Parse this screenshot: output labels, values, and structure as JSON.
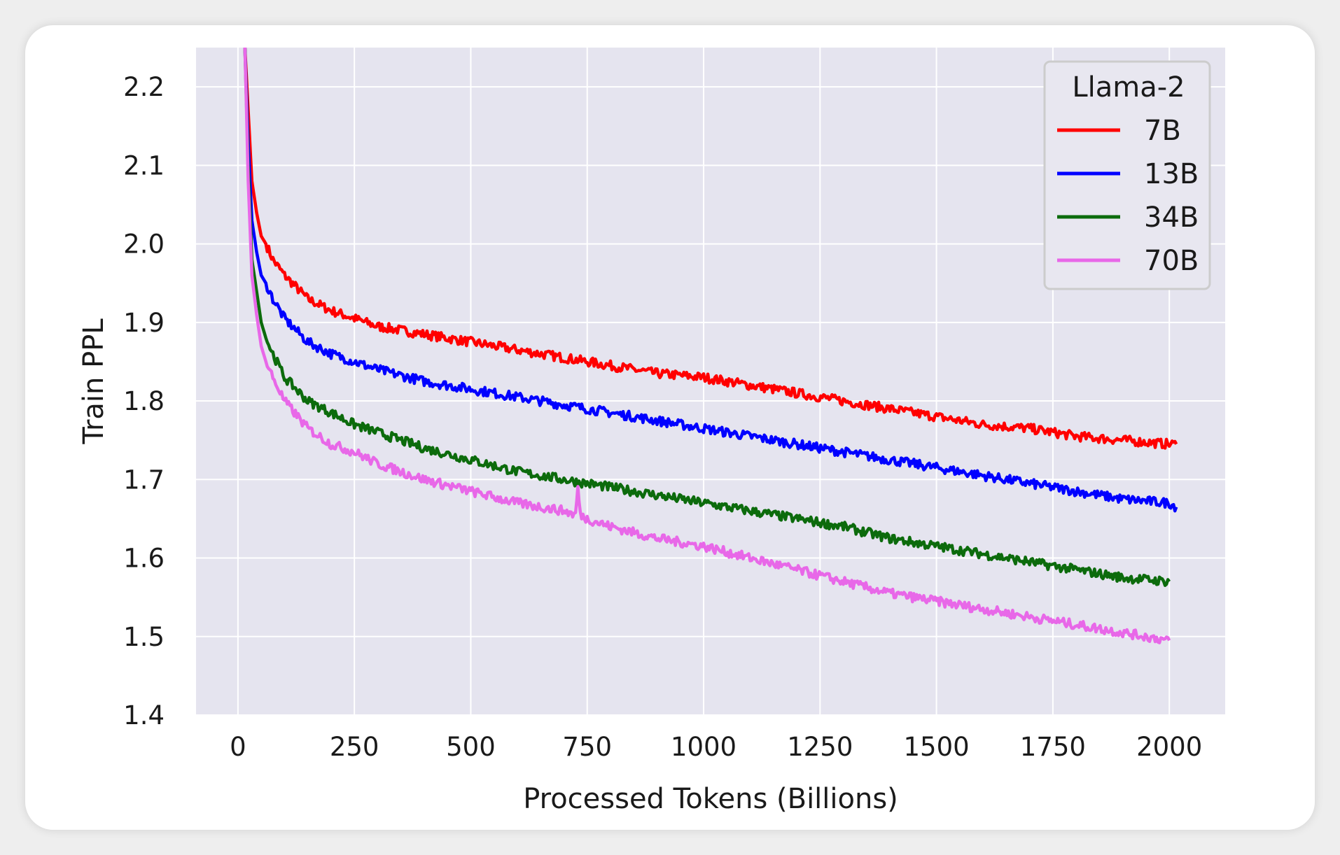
{
  "chart_data": {
    "type": "line",
    "title": "",
    "xlabel": "Processed Tokens (Billions)",
    "ylabel": "Train PPL",
    "xlim": [
      -90,
      2120
    ],
    "ylim": [
      1.4,
      2.25
    ],
    "xticks": [
      0,
      250,
      500,
      750,
      1000,
      1250,
      1500,
      1750,
      2000
    ],
    "xtick_labels": [
      "0",
      "250",
      "500",
      "750",
      "1000",
      "1250",
      "1500",
      "1750",
      "2000"
    ],
    "yticks": [
      1.4,
      1.5,
      1.6,
      1.7,
      1.8,
      1.9,
      2.0,
      2.1,
      2.2
    ],
    "ytick_labels": [
      "1.4",
      "1.5",
      "1.6",
      "1.7",
      "1.8",
      "1.9",
      "2.0",
      "2.1",
      "2.2"
    ],
    "grid": true,
    "background": "#e5e4ef",
    "legend": {
      "title": "Llama-2",
      "position": "top-right"
    },
    "series": [
      {
        "name": "7B",
        "color": "#ff0000",
        "x": [
          15,
          22,
          30,
          40,
          50,
          60,
          75,
          100,
          150,
          200,
          250,
          300,
          400,
          500,
          600,
          700,
          750,
          800,
          900,
          1000,
          1100,
          1200,
          1300,
          1400,
          1500,
          1600,
          1700,
          1800,
          1900,
          2000,
          2015
        ],
        "y": [
          2.25,
          2.17,
          2.08,
          2.04,
          2.01,
          2.0,
          1.98,
          1.96,
          1.93,
          1.915,
          1.905,
          1.895,
          1.885,
          1.875,
          1.865,
          1.855,
          1.85,
          1.845,
          1.835,
          1.83,
          1.82,
          1.81,
          1.8,
          1.79,
          1.78,
          1.77,
          1.765,
          1.755,
          1.75,
          1.745,
          1.745
        ]
      },
      {
        "name": "13B",
        "color": "#0000ff",
        "x": [
          15,
          22,
          30,
          40,
          50,
          60,
          75,
          100,
          150,
          200,
          250,
          300,
          400,
          500,
          600,
          700,
          750,
          800,
          900,
          1000,
          1100,
          1200,
          1300,
          1400,
          1500,
          1600,
          1700,
          1800,
          1900,
          2000,
          2015
        ],
        "y": [
          2.25,
          2.13,
          2.03,
          1.99,
          1.96,
          1.95,
          1.93,
          1.905,
          1.875,
          1.86,
          1.85,
          1.84,
          1.825,
          1.815,
          1.805,
          1.795,
          1.79,
          1.785,
          1.775,
          1.765,
          1.755,
          1.745,
          1.735,
          1.725,
          1.715,
          1.705,
          1.695,
          1.685,
          1.675,
          1.67,
          1.665
        ]
      },
      {
        "name": "34B",
        "color": "#0c6b0c",
        "x": [
          15,
          22,
          30,
          40,
          50,
          60,
          75,
          100,
          150,
          200,
          250,
          300,
          400,
          500,
          600,
          700,
          750,
          800,
          900,
          1000,
          1100,
          1200,
          1300,
          1400,
          1500,
          1600,
          1700,
          1800,
          1900,
          2000
        ],
        "y": [
          2.25,
          2.1,
          1.98,
          1.94,
          1.9,
          1.88,
          1.86,
          1.83,
          1.8,
          1.785,
          1.77,
          1.76,
          1.74,
          1.725,
          1.71,
          1.7,
          1.695,
          1.69,
          1.68,
          1.67,
          1.66,
          1.65,
          1.64,
          1.625,
          1.615,
          1.605,
          1.595,
          1.585,
          1.575,
          1.57
        ]
      },
      {
        "name": "70B",
        "color": "#e868e8",
        "x": [
          15,
          22,
          30,
          40,
          50,
          60,
          75,
          100,
          150,
          200,
          250,
          300,
          400,
          500,
          600,
          700,
          725,
          730,
          735,
          750,
          800,
          900,
          1000,
          1100,
          1200,
          1300,
          1400,
          1500,
          1600,
          1700,
          1800,
          1900,
          2000
        ],
        "y": [
          2.25,
          2.08,
          1.96,
          1.91,
          1.87,
          1.85,
          1.83,
          1.8,
          1.765,
          1.745,
          1.735,
          1.72,
          1.7,
          1.685,
          1.67,
          1.66,
          1.655,
          1.69,
          1.655,
          1.65,
          1.64,
          1.625,
          1.615,
          1.6,
          1.585,
          1.57,
          1.555,
          1.545,
          1.535,
          1.525,
          1.515,
          1.505,
          1.495
        ]
      }
    ]
  }
}
